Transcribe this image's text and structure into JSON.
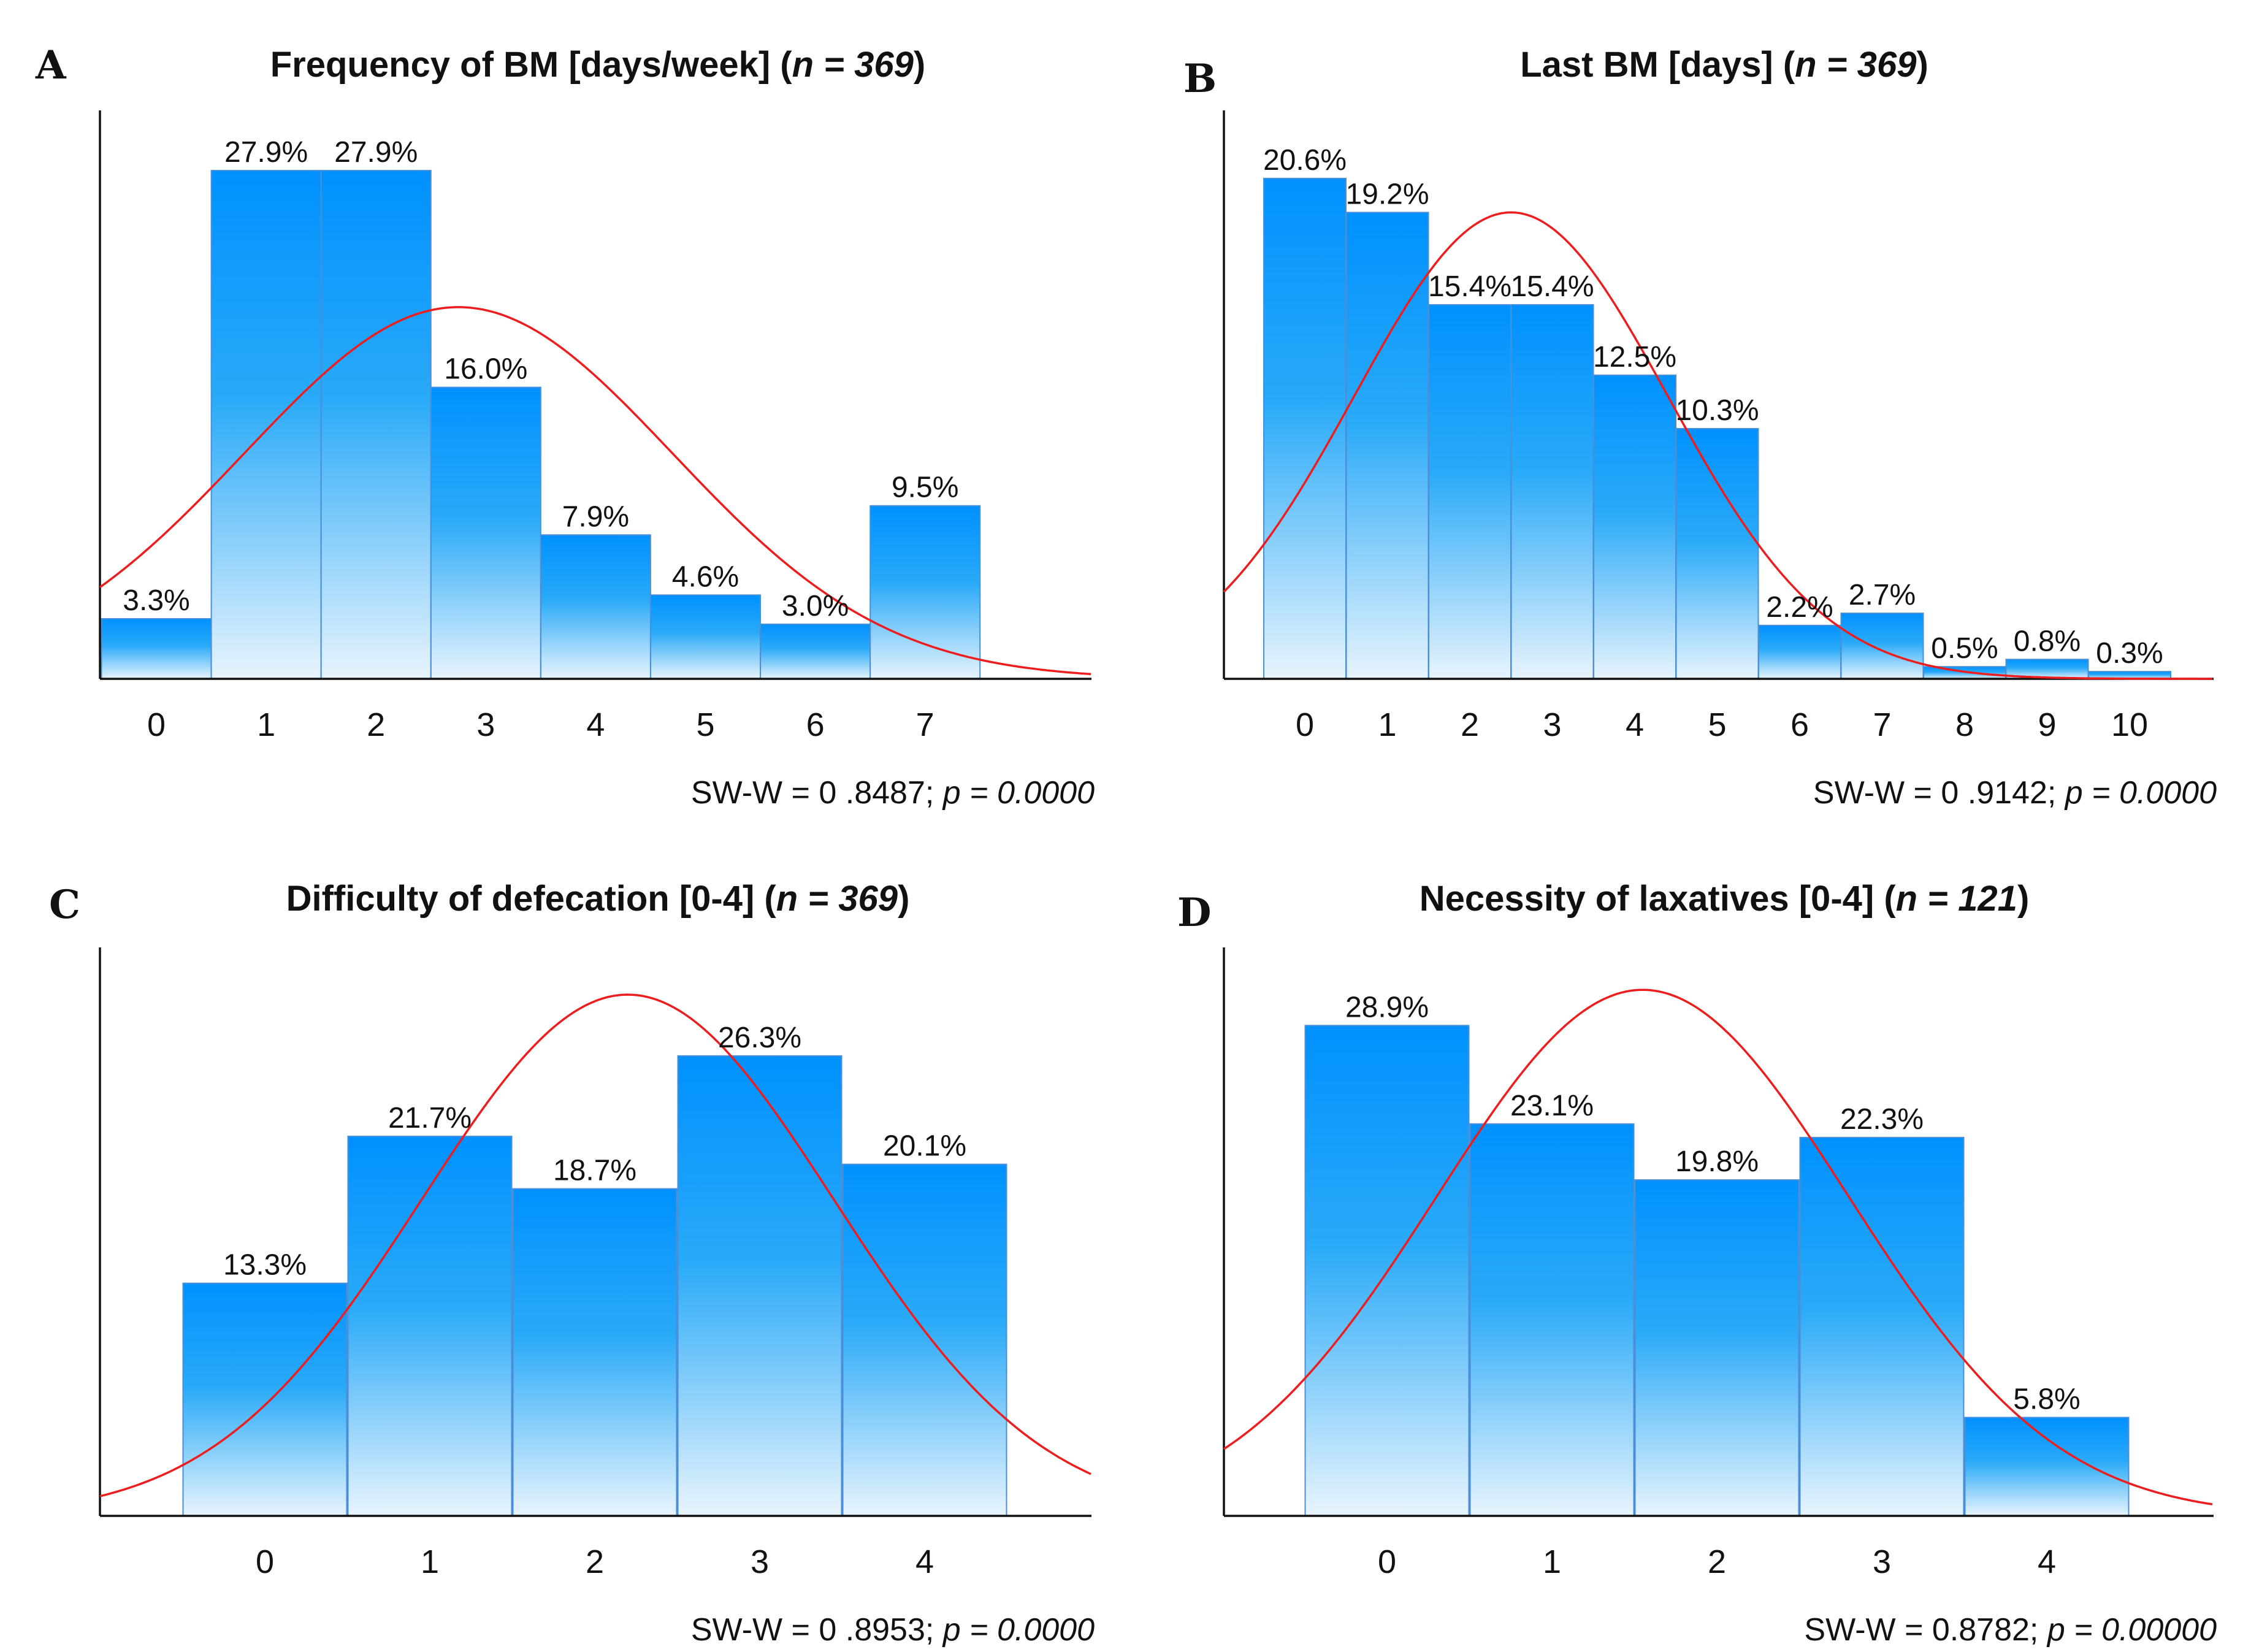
{
  "colors": {
    "bar_top_dark": "#0091ff",
    "bar_mid": "#2aaaf8",
    "bar_bottom_light": "#e8f4fd",
    "bar_stroke": "#4a8fd8",
    "curve": "#ee1c1c"
  },
  "chart_data": [
    {
      "type": "bar",
      "panel": "A",
      "title": "Frequency of BM [days/week]",
      "n_label": "n",
      "n_value": "369",
      "categories": [
        "0",
        "1",
        "2",
        "3",
        "4",
        "5",
        "6",
        "7"
      ],
      "values": [
        3.3,
        27.9,
        27.9,
        16.0,
        7.9,
        4.6,
        3.0,
        9.5
      ],
      "value_labels": [
        "3.3%",
        "27.9%",
        "27.9%",
        "16.0%",
        "7.9%",
        "4.6%",
        "3.0%",
        "9.5%"
      ],
      "ylim": [
        0,
        31.2
      ],
      "xrange": [
        -1,
        8
      ],
      "normal_curve": {
        "mean": 2.75,
        "sd": 1.95,
        "peak_value": 20.4
      },
      "stat_prefix": "SW-W = 0 .8487; ",
      "stat_p": "p = 0.0000"
    },
    {
      "type": "bar",
      "panel": "B",
      "title": "Last BM [days]",
      "n_label": "n",
      "n_value": "369",
      "categories": [
        "0",
        "1",
        "2",
        "3",
        "4",
        "5",
        "6",
        "7",
        "8",
        "9",
        "10"
      ],
      "values": [
        20.6,
        19.2,
        15.4,
        15.4,
        12.5,
        10.3,
        2.2,
        2.7,
        0.5,
        0.8,
        0.3
      ],
      "value_labels": [
        "20.6%",
        "19.2%",
        "15.4%",
        "15.4%",
        "12.5%",
        "10.3%",
        "2.2%",
        "2.7%",
        "0.5%",
        "0.8%",
        "0.3%"
      ],
      "ylim": [
        0,
        23.4
      ],
      "xrange": [
        -1,
        11
      ],
      "normal_curve": {
        "mean": 2.5,
        "sd": 1.9,
        "peak_value": 19.2
      },
      "stat_prefix": "SW-W = 0 .9142; ",
      "stat_p": "p = 0.0000"
    },
    {
      "type": "bar",
      "panel": "C",
      "title": "Difficulty of defecation [0-4]",
      "n_label": "n",
      "n_value": "369",
      "categories": [
        "0",
        "1",
        "2",
        "3",
        "4"
      ],
      "values": [
        13.3,
        21.7,
        18.7,
        26.3,
        20.1
      ],
      "value_labels": [
        "13.3%",
        "21.7%",
        "18.7%",
        "26.3%",
        "20.1%"
      ],
      "ylim": [
        0,
        32.5
      ],
      "xrange": [
        -1,
        5
      ],
      "normal_curve": {
        "mean": 2.2,
        "sd": 1.25,
        "peak_value": 29.8
      },
      "stat_prefix": "SW-W = 0 .8953; ",
      "stat_p": "p = 0.0000"
    },
    {
      "type": "bar",
      "panel": "D",
      "title": "Necessity of laxatives [0-4]",
      "n_label": "n",
      "n_value": "121",
      "categories": [
        "0",
        "1",
        "2",
        "3",
        "4"
      ],
      "values": [
        28.9,
        23.1,
        19.8,
        22.3,
        5.8
      ],
      "value_labels": [
        "28.9%",
        "23.1%",
        "19.8%",
        "22.3%",
        "5.8%"
      ],
      "ylim": [
        0,
        33.5
      ],
      "xrange": [
        -1,
        5
      ],
      "normal_curve": {
        "mean": 1.55,
        "sd": 1.25,
        "peak_value": 31.0
      },
      "stat_prefix": "SW-W = 0.8782; ",
      "stat_p": "p = 0.00000"
    }
  ]
}
